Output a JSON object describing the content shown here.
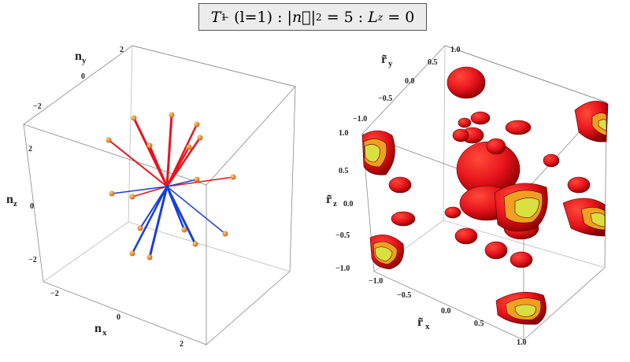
{
  "title": {
    "T": "T",
    "T_sub": "1",
    "T_sup": "−",
    "l_text": "(l=1)",
    "sep1": ":",
    "n_expr": "|n⃗|",
    "n_pow": "2",
    "eq1": "= 5",
    "sep2": ":",
    "L": "L",
    "L_sub": "z",
    "eq2": "= 0"
  },
  "left_plot": {
    "axes": {
      "x_label": "n",
      "x_sub": "x",
      "y_label": "n",
      "y_sub": "y",
      "z_label": "n",
      "z_sub": "z"
    },
    "x_ticks": [
      "−2",
      "0",
      "2"
    ],
    "y_ticks": [
      "−2",
      "0",
      "2"
    ],
    "z_ticks": [
      "−2",
      "0",
      "2"
    ],
    "colors": {
      "upper": "#e8141c",
      "lower": "#1a3fd6",
      "tip": "#e87a1a"
    }
  },
  "right_plot": {
    "axes": {
      "x_label": "r̃",
      "x_sub": "x",
      "y_label": "r̃",
      "y_sub": "y",
      "z_label": "r̃",
      "z_sub": "z"
    },
    "x_ticks": [
      "−1.0",
      "−0.5",
      "0.0",
      "0.5",
      "1.0"
    ],
    "y_ticks": [
      "−1.0",
      "−0.5",
      "0.0",
      "0.5",
      "1.0"
    ],
    "z_ticks": [
      "−1.0",
      "−0.5",
      "0.0",
      "0.5",
      "1.0"
    ],
    "colors": {
      "surface": "#e8141c",
      "dark": "#6a0000",
      "inner": "#f0a020",
      "core": "#d8e040"
    }
  }
}
